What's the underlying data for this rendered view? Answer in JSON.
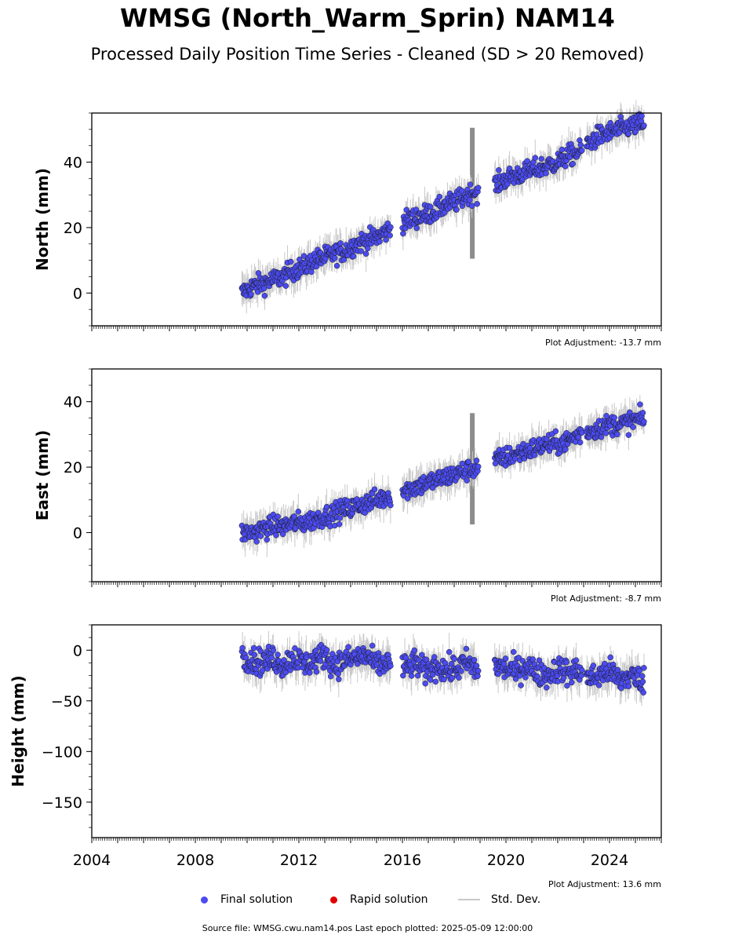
{
  "title": "WMSG (North_Warm_Sprin) NAM14",
  "subtitle": "Processed Daily Position Time Series - Cleaned (SD > 20 Removed)",
  "legend": {
    "final": "Final solution",
    "rapid": "Rapid solution",
    "std": "Std. Dev."
  },
  "footer": "Source file: WMSG.cwu.nam14.pos  Last epoch plotted: 2025-05-09 12:00:00",
  "colors": {
    "final": "#4b4bf0",
    "final_edge": "#1a1a1a",
    "rapid": "#e00000",
    "std": "#c8c8c8",
    "std_dense": "#666666"
  },
  "chart_data": [
    {
      "type": "scatter",
      "ylabel": "North (mm)",
      "xlim": [
        2004,
        2026
      ],
      "ylim": [
        -10,
        55
      ],
      "yticks": [
        0,
        20,
        40
      ],
      "xticks": [
        2004,
        2008,
        2012,
        2016,
        2020,
        2024
      ],
      "adjustment": "Plot Adjustment: -13.7 mm",
      "series": [
        {
          "name": "Final solution",
          "x": [
            2009.8,
            2010.2,
            2010.6,
            2011.0,
            2011.4,
            2011.8,
            2012.2,
            2012.6,
            2013.0,
            2013.4,
            2013.8,
            2014.2,
            2014.6,
            2015.0,
            2015.4,
            2016.1,
            2016.5,
            2016.9,
            2017.3,
            2017.7,
            2018.1,
            2018.5,
            2018.9,
            2019.6,
            2020.0,
            2020.4,
            2020.8,
            2021.2,
            2021.6,
            2022.0,
            2022.4,
            2022.8,
            2023.2,
            2023.6,
            2024.0,
            2024.4,
            2024.8,
            2025.35
          ],
          "y": [
            0,
            2,
            3,
            4,
            5,
            7,
            8,
            10,
            11,
            12,
            13,
            15,
            16,
            17,
            19,
            22,
            23,
            24,
            25,
            27,
            28,
            30,
            31,
            33,
            35,
            36,
            37,
            38,
            39,
            40,
            42,
            43,
            46,
            48,
            49,
            50,
            51,
            52
          ]
        }
      ]
    },
    {
      "type": "scatter",
      "ylabel": "East (mm)",
      "xlim": [
        2004,
        2026
      ],
      "ylim": [
        -15,
        50
      ],
      "yticks": [
        0,
        20,
        40
      ],
      "xticks": [
        2004,
        2008,
        2012,
        2016,
        2020,
        2024
      ],
      "adjustment": "Plot Adjustment: -8.7 mm",
      "series": [
        {
          "name": "Final solution",
          "x": [
            2009.8,
            2010.2,
            2010.6,
            2011.0,
            2011.4,
            2011.8,
            2012.2,
            2012.6,
            2013.0,
            2013.4,
            2013.8,
            2014.2,
            2014.6,
            2015.0,
            2015.4,
            2016.1,
            2016.5,
            2016.9,
            2017.3,
            2017.7,
            2018.1,
            2018.5,
            2018.9,
            2019.6,
            2020.0,
            2020.4,
            2020.8,
            2021.2,
            2021.6,
            2022.0,
            2022.4,
            2022.8,
            2023.2,
            2023.6,
            2024.0,
            2024.4,
            2024.8,
            2025.35
          ],
          "y": [
            0,
            0,
            1,
            2,
            2,
            3,
            3,
            4,
            5,
            6,
            7,
            8,
            9,
            10,
            11,
            13,
            14,
            15,
            16,
            17,
            18,
            19,
            20,
            22,
            23,
            24,
            25,
            26,
            27,
            27,
            28,
            30,
            31,
            32,
            33,
            33,
            34,
            35
          ]
        }
      ]
    },
    {
      "type": "scatter",
      "ylabel": "Height (mm)",
      "xlim": [
        2004,
        2026
      ],
      "ylim": [
        -185,
        25
      ],
      "yticks": [
        0,
        -50,
        -100,
        -150
      ],
      "xticks": [
        2004,
        2008,
        2012,
        2016,
        2020,
        2024
      ],
      "adjustment": "Plot Adjustment: 13.6 mm",
      "series": [
        {
          "name": "Final solution",
          "x": [
            2009.8,
            2010.2,
            2010.6,
            2011.0,
            2011.4,
            2011.8,
            2012.2,
            2012.6,
            2013.0,
            2013.4,
            2013.8,
            2014.2,
            2014.6,
            2015.0,
            2015.4,
            2016.1,
            2016.5,
            2016.9,
            2017.3,
            2017.7,
            2018.1,
            2018.5,
            2018.9,
            2019.6,
            2020.0,
            2020.4,
            2020.8,
            2021.2,
            2021.6,
            2022.0,
            2022.4,
            2022.8,
            2023.2,
            2023.6,
            2024.0,
            2024.4,
            2024.8,
            2025.35
          ],
          "y": [
            -5,
            -10,
            -12,
            -8,
            -15,
            -6,
            -14,
            -10,
            -5,
            -15,
            -10,
            -8,
            -5,
            -15,
            -12,
            -18,
            -12,
            -22,
            -15,
            -20,
            -18,
            -12,
            -20,
            -15,
            -18,
            -20,
            -15,
            -22,
            -25,
            -18,
            -22,
            -20,
            -28,
            -25,
            -20,
            -30,
            -25,
            -30
          ]
        }
      ]
    }
  ]
}
